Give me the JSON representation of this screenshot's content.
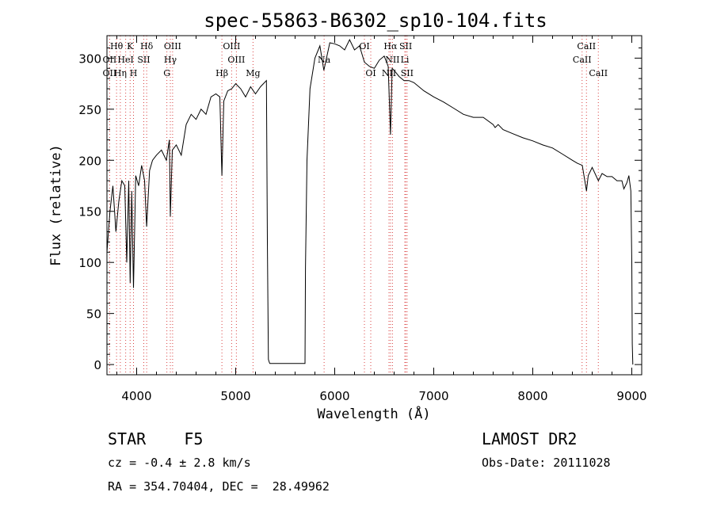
{
  "chart_data": {
    "type": "line",
    "title": "spec-55863-B6302_sp10-104.fits",
    "xlabel": "Wavelength (Å)",
    "ylabel": "Flux (relative)",
    "xlim": [
      3700,
      9100
    ],
    "ylim": [
      -10,
      322
    ],
    "xticks": [
      4000,
      5000,
      6000,
      7000,
      8000,
      9000
    ],
    "yticks": [
      0,
      50,
      100,
      150,
      200,
      250,
      300
    ],
    "series": [
      {
        "name": "spectrum",
        "x": [
          3700,
          3730,
          3760,
          3790,
          3820,
          3850,
          3880,
          3900,
          3920,
          3934,
          3950,
          3968,
          3990,
          4020,
          4050,
          4080,
          4101,
          4130,
          4160,
          4200,
          4250,
          4300,
          4330,
          4340,
          4360,
          4400,
          4450,
          4500,
          4550,
          4600,
          4650,
          4700,
          4750,
          4800,
          4840,
          4861,
          4880,
          4920,
          4960,
          5000,
          5050,
          5100,
          5150,
          5200,
          5250,
          5280,
          5310,
          5320,
          5330,
          5340,
          5345,
          5700,
          5705,
          5720,
          5750,
          5800,
          5850,
          5890,
          5950,
          6000,
          6050,
          6100,
          6150,
          6200,
          6250,
          6300,
          6350,
          6400,
          6450,
          6500,
          6540,
          6563,
          6580,
          6600,
          6650,
          6700,
          6750,
          6800,
          6900,
          7000,
          7100,
          7200,
          7300,
          7400,
          7500,
          7600,
          7620,
          7650,
          7700,
          7800,
          7900,
          8000,
          8100,
          8200,
          8300,
          8400,
          8450,
          8500,
          8542,
          8560,
          8600,
          8662,
          8700,
          8750,
          8800,
          8850,
          8900,
          8920,
          8950,
          8970,
          8990,
          9000,
          9005,
          9010
        ],
        "y": [
          110,
          150,
          175,
          130,
          160,
          180,
          175,
          100,
          180,
          80,
          170,
          75,
          185,
          175,
          195,
          180,
          135,
          190,
          200,
          205,
          210,
          200,
          220,
          145,
          210,
          215,
          205,
          235,
          245,
          240,
          250,
          245,
          262,
          265,
          262,
          185,
          258,
          268,
          270,
          275,
          270,
          262,
          272,
          265,
          272,
          275,
          278,
          120,
          5,
          2,
          1,
          1,
          95,
          200,
          270,
          300,
          312,
          288,
          315,
          314,
          312,
          308,
          318,
          308,
          312,
          296,
          292,
          290,
          298,
          302,
          292,
          225,
          290,
          288,
          282,
          278,
          278,
          276,
          268,
          262,
          257,
          251,
          245,
          242,
          242,
          235,
          232,
          235,
          230,
          226,
          222,
          219,
          215,
          212,
          206,
          200,
          197,
          195,
          170,
          185,
          193,
          180,
          187,
          184,
          184,
          180,
          180,
          172,
          178,
          185,
          170,
          100,
          20,
          0
        ]
      }
    ],
    "spectral_lines": [
      {
        "label": "Hθ",
        "wavelength": 3797,
        "row": 1
      },
      {
        "label": "K",
        "wavelength": 3934,
        "row": 1
      },
      {
        "label": "Hδ",
        "wavelength": 4101,
        "row": 1
      },
      {
        "label": "OIII",
        "wavelength": 4363,
        "row": 1
      },
      {
        "label": "OIII",
        "wavelength": 4959,
        "row": 1
      },
      {
        "label": "OI",
        "wavelength": 6300,
        "row": 1
      },
      {
        "label": "Hα",
        "wavelength": 6563,
        "row": 1
      },
      {
        "label": "SII",
        "wavelength": 6717,
        "row": 1
      },
      {
        "label": "CaII",
        "wavelength": 8542,
        "row": 1
      },
      {
        "label": "OII",
        "wavelength": 3727,
        "row": 2
      },
      {
        "label": "HeI",
        "wavelength": 3889,
        "row": 2
      },
      {
        "label": "SII",
        "wavelength": 4072,
        "row": 2
      },
      {
        "label": "Hγ",
        "wavelength": 4340,
        "row": 2
      },
      {
        "label": "OIII",
        "wavelength": 5007,
        "row": 2
      },
      {
        "label": "Na",
        "wavelength": 5893,
        "row": 2
      },
      {
        "label": "NII",
        "wavelength": 6583,
        "row": 2
      },
      {
        "label": "Li",
        "wavelength": 6708,
        "row": 2
      },
      {
        "label": "CaII",
        "wavelength": 8498,
        "row": 2
      },
      {
        "label": "OII",
        "wavelength": 3727,
        "row": 3
      },
      {
        "label": "Hη",
        "wavelength": 3835,
        "row": 3
      },
      {
        "label": "H",
        "wavelength": 3968,
        "row": 3
      },
      {
        "label": "G",
        "wavelength": 4305,
        "row": 3
      },
      {
        "label": "Hβ",
        "wavelength": 4861,
        "row": 3
      },
      {
        "label": "Mg",
        "wavelength": 5175,
        "row": 3
      },
      {
        "label": "OI",
        "wavelength": 6364,
        "row": 3
      },
      {
        "label": "NII",
        "wavelength": 6548,
        "row": 3
      },
      {
        "label": "SII",
        "wavelength": 6731,
        "row": 3
      },
      {
        "label": "CaII",
        "wavelength": 8662,
        "row": 3
      }
    ]
  },
  "info": {
    "class_line": "STAR    F5",
    "survey": "LAMOST DR2",
    "redshift": "cz = -0.4 ± 2.8 km/s",
    "obs_date": "Obs-Date: 20111028",
    "coords": "RA = 354.70404, DEC =  28.49962"
  },
  "colors": {
    "axis": "#000000",
    "line_marker": "#d94040",
    "spectrum": "#000000"
  }
}
